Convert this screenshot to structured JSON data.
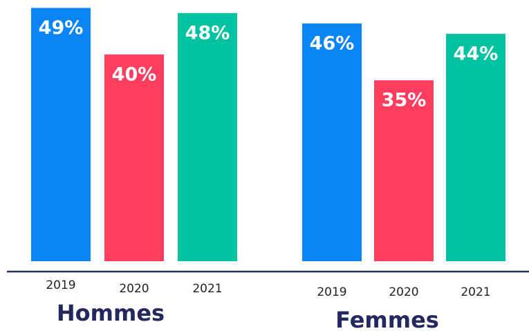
{
  "chart_data": {
    "type": "bar",
    "categories": [
      "Hommes",
      "Femmes"
    ],
    "series": [
      {
        "name": "2019",
        "color": "#0b84f4",
        "values": [
          49,
          46
        ],
        "value_labels": [
          "49%",
          "46%"
        ]
      },
      {
        "name": "2020",
        "color": "#ff3d5f",
        "values": [
          40,
          35
        ],
        "value_labels": [
          "40%",
          "35%"
        ]
      },
      {
        "name": "2021",
        "color": "#00c2a0",
        "values": [
          48,
          44
        ],
        "value_labels": [
          "48%",
          "44%"
        ]
      }
    ]
  }
}
